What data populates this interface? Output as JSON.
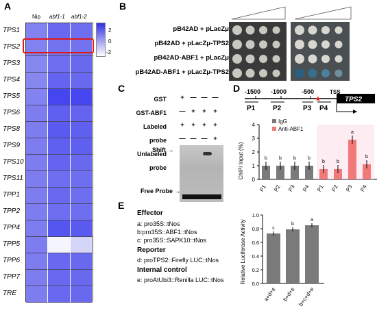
{
  "panels": {
    "A": "A",
    "B": "B",
    "C": "C",
    "D": "D",
    "E": "E"
  },
  "heatmap": {
    "columns": [
      "Nip",
      "abf1-1",
      "abf1-2"
    ],
    "rows": [
      "TPS1",
      "TPS2",
      "TPS3",
      "TPS4",
      "TPS5",
      "TPS6",
      "TPS8",
      "TPS9",
      "TPS10",
      "TPS11",
      "TPP1",
      "TPP2",
      "TPP4",
      "TPP5",
      "TPP6",
      "TPP7",
      "TRE"
    ],
    "values": [
      [
        0.2,
        0.45,
        0.4
      ],
      [
        0.2,
        0.35,
        0.35
      ],
      [
        0.15,
        0.4,
        0.45
      ],
      [
        0.15,
        0.5,
        0.45
      ],
      [
        0.2,
        0.8,
        0.8
      ],
      [
        0.25,
        0.55,
        0.5
      ],
      [
        0.25,
        0.6,
        0.55
      ],
      [
        0.25,
        0.55,
        0.55
      ],
      [
        0.25,
        0.5,
        0.45
      ],
      [
        0.25,
        0.4,
        0.4
      ],
      [
        0.25,
        0.45,
        0.4
      ],
      [
        0.25,
        0.4,
        0.4
      ],
      [
        0.25,
        0.65,
        0.6
      ],
      [
        0.25,
        -0.9,
        -0.6
      ],
      [
        0.25,
        0.45,
        0.45
      ],
      [
        0.25,
        0.45,
        0.45
      ],
      [
        0.25,
        0.45,
        0.45
      ]
    ],
    "highlight_row": "TPS2",
    "scale_ticks": [
      "2",
      "0",
      "-2"
    ]
  },
  "panelB": {
    "rows": [
      "pB42AD + pLacZμ",
      "pB42AD + pLacZμ-TPS2",
      "pB42AD-ABF1 + pLacZμ",
      "pB42AD-ABF1 + pLacZμ-TPS2"
    ]
  },
  "panelC": {
    "row_labels": [
      "GST",
      "GST-ABF1",
      "Labeled probe",
      "Unlabeled probe"
    ],
    "signs": [
      [
        "+",
        "—",
        "—",
        "—"
      ],
      [
        "—",
        "+",
        "+",
        "+"
      ],
      [
        "+",
        "+",
        "+",
        "+"
      ],
      [
        "—",
        "—",
        "—",
        "+"
      ]
    ],
    "shift": "Shift",
    "free": "Free Probe"
  },
  "panelD": {
    "positions": [
      "-1500",
      "-1000",
      "-500"
    ],
    "tss": "TSS",
    "gene": "TPS2",
    "regions": [
      "P1",
      "P2",
      "P3",
      "P4"
    ],
    "chart_data": {
      "type": "bar",
      "ylabel": "ChIP/ Input (%)",
      "ylim": [
        0,
        4
      ],
      "yticks": [
        "0",
        "1",
        "2",
        "3",
        "4"
      ],
      "categories": [
        "P1",
        "P2",
        "P3",
        "P4",
        "P1",
        "P2",
        "P3",
        "P4"
      ],
      "series": [
        {
          "name": "IgG",
          "values": [
            1.0,
            1.0,
            1.0,
            1.0,
            null,
            null,
            null,
            null
          ],
          "color": "#7a7a7a"
        },
        {
          "name": "Anti-ABF1",
          "values": [
            null,
            null,
            null,
            null,
            0.75,
            0.75,
            2.9,
            1.1
          ],
          "color": "#f07a7a"
        }
      ],
      "letters": [
        "b",
        "b",
        "b",
        "b",
        "b",
        "b",
        "a",
        "b"
      ]
    }
  },
  "panelE": {
    "effector": "Effector",
    "effector_items": [
      "a: pro35S::tNos",
      "b:pro35S::ABF1::tNos",
      "c: pro35S::SAPK10::tNos"
    ],
    "reporter": "Reporter",
    "reporter_item": "d: proTPS2::Firefly LUC::tNos",
    "internal": "Internal control",
    "internal_item": "e: proAtUbi3::Renilla LUC::tNos",
    "chart_data": {
      "type": "bar",
      "ylabel": "Relative Luciferase Activity",
      "ylim": [
        0,
        1.0
      ],
      "yticks": [
        "0.0",
        "0.2",
        "0.4",
        "0.6",
        "0.8",
        "1.0"
      ],
      "categories": [
        "a+d+e",
        "b+d+e",
        "b+c+d+e"
      ],
      "values": [
        0.73,
        0.79,
        0.85
      ],
      "letters": [
        "c",
        "b",
        "a"
      ],
      "color": "#7a7a7a"
    }
  }
}
